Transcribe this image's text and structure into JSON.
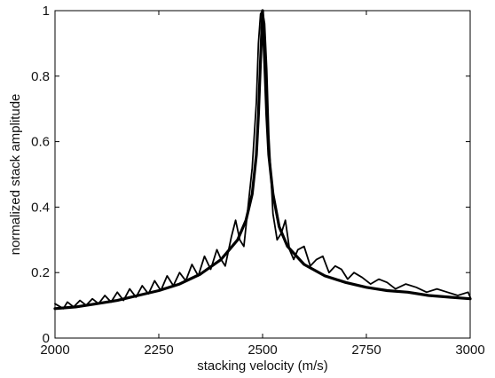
{
  "chart_data": {
    "type": "line",
    "title": "",
    "xlabel": "stacking velocity (m/s)",
    "ylabel": "normalized stack amplitude",
    "xlim": [
      2000,
      3000
    ],
    "ylim": [
      0,
      1
    ],
    "xticks": [
      2000,
      2250,
      2500,
      2750,
      3000
    ],
    "yticks": [
      0,
      0.2,
      0.4,
      0.6,
      0.8,
      1
    ],
    "ytick_labels": [
      "0",
      "0.2",
      "0.4",
      "0.6",
      "0.8",
      "1"
    ],
    "grid": false,
    "legend": "none",
    "line_color": "#000000",
    "series": [
      {
        "style": "thick",
        "x": [
          2000,
          2050,
          2100,
          2150,
          2200,
          2250,
          2300,
          2350,
          2400,
          2440,
          2460,
          2475,
          2485,
          2490,
          2495,
          2500,
          2505,
          2510,
          2515,
          2525,
          2540,
          2560,
          2600,
          2650,
          2700,
          2750,
          2800,
          2850,
          2900,
          2950,
          3000
        ],
        "y": [
          0.09,
          0.095,
          0.105,
          0.115,
          0.13,
          0.145,
          0.165,
          0.195,
          0.24,
          0.3,
          0.36,
          0.44,
          0.56,
          0.68,
          0.85,
          1.0,
          0.85,
          0.68,
          0.56,
          0.44,
          0.34,
          0.28,
          0.225,
          0.19,
          0.17,
          0.155,
          0.145,
          0.14,
          0.13,
          0.125,
          0.12
        ]
      },
      {
        "style": "oscillating",
        "x": [
          2000,
          2020,
          2030,
          2045,
          2060,
          2075,
          2090,
          2105,
          2120,
          2135,
          2150,
          2165,
          2180,
          2195,
          2210,
          2225,
          2240,
          2255,
          2270,
          2285,
          2300,
          2315,
          2330,
          2345,
          2360,
          2375,
          2390,
          2400,
          2410,
          2425,
          2435,
          2445,
          2455,
          2465,
          2475,
          2485,
          2490,
          2495,
          2500,
          2505,
          2510,
          2515,
          2525,
          2535,
          2545,
          2555,
          2565,
          2575,
          2585,
          2600,
          2615,
          2630,
          2645,
          2660,
          2675,
          2690,
          2705,
          2720,
          2740,
          2760,
          2780,
          2800,
          2820,
          2845,
          2870,
          2895,
          2920,
          2945,
          2970,
          2995,
          3000
        ],
        "y": [
          0.105,
          0.09,
          0.11,
          0.095,
          0.115,
          0.1,
          0.12,
          0.105,
          0.13,
          0.11,
          0.14,
          0.115,
          0.15,
          0.125,
          0.16,
          0.135,
          0.175,
          0.145,
          0.19,
          0.16,
          0.2,
          0.175,
          0.225,
          0.19,
          0.25,
          0.21,
          0.27,
          0.24,
          0.22,
          0.31,
          0.36,
          0.3,
          0.28,
          0.4,
          0.52,
          0.72,
          0.9,
          0.99,
          1.0,
          0.96,
          0.82,
          0.62,
          0.38,
          0.3,
          0.32,
          0.36,
          0.27,
          0.24,
          0.27,
          0.28,
          0.22,
          0.24,
          0.25,
          0.2,
          0.22,
          0.21,
          0.18,
          0.2,
          0.185,
          0.165,
          0.18,
          0.17,
          0.15,
          0.165,
          0.155,
          0.14,
          0.15,
          0.14,
          0.13,
          0.14,
          0.125
        ]
      }
    ]
  }
}
